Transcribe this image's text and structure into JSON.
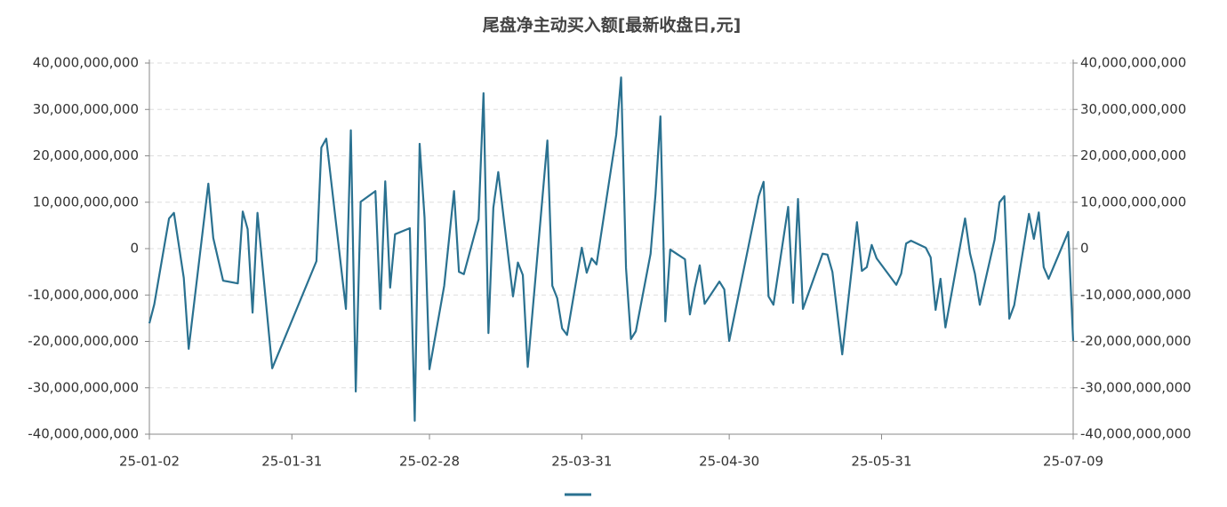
{
  "chart_data": {
    "type": "line",
    "title": "尾盘净主动买入额[最新收盘日,元]",
    "x": [
      "25-01-02",
      "25-01-03",
      "25-01-06",
      "25-01-07",
      "25-01-09",
      "25-01-10",
      "25-01-14",
      "25-01-15",
      "25-01-17",
      "25-01-20",
      "25-01-21",
      "25-01-22",
      "25-01-23",
      "25-01-24",
      "25-01-27",
      "25-02-05",
      "25-02-06",
      "25-02-07",
      "25-02-11",
      "25-02-12",
      "25-02-13",
      "25-02-14",
      "25-02-17",
      "25-02-18",
      "25-02-19",
      "25-02-20",
      "25-02-21",
      "25-02-24",
      "25-02-25",
      "25-02-26",
      "25-02-27",
      "25-02-28",
      "25-03-03",
      "25-03-05",
      "25-03-06",
      "25-03-07",
      "25-03-10",
      "25-03-11",
      "25-03-12",
      "25-03-13",
      "25-03-14",
      "25-03-17",
      "25-03-18",
      "25-03-19",
      "25-03-20",
      "25-03-24",
      "25-03-25",
      "25-03-26",
      "25-03-27",
      "25-03-28",
      "25-03-31",
      "25-04-01",
      "25-04-02",
      "25-04-03",
      "25-04-07",
      "25-04-08",
      "25-04-09",
      "25-04-10",
      "25-04-11",
      "25-04-14",
      "25-04-15",
      "25-04-16",
      "25-04-17",
      "25-04-18",
      "25-04-21",
      "25-04-22",
      "25-04-23",
      "25-04-24",
      "25-04-25",
      "25-04-28",
      "25-04-29",
      "25-04-30",
      "25-05-06",
      "25-05-07",
      "25-05-08",
      "25-05-09",
      "25-05-12",
      "25-05-13",
      "25-05-14",
      "25-05-15",
      "25-05-19",
      "25-05-20",
      "25-05-21",
      "25-05-23",
      "25-05-26",
      "25-05-27",
      "25-05-28",
      "25-05-29",
      "25-05-30",
      "25-06-03",
      "25-06-04",
      "25-06-05",
      "25-06-06",
      "25-06-09",
      "25-06-10",
      "25-06-11",
      "25-06-12",
      "25-06-13",
      "25-06-17",
      "25-06-18",
      "25-06-19",
      "25-06-20",
      "25-06-23",
      "25-06-24",
      "25-06-25",
      "25-06-26",
      "25-06-27",
      "25-06-30",
      "25-07-01",
      "25-07-02",
      "25-07-03",
      "25-07-04",
      "25-07-08",
      "25-07-09"
    ],
    "series": [
      {
        "color": "#2a7190",
        "values": [
          -16100000000,
          -12000000000,
          6500000000,
          7700000000,
          -6300000000,
          -21600000000,
          14000000000,
          2300000000,
          -6900000000,
          -7500000000,
          8000000000,
          4200000000,
          -13800000000,
          7700000000,
          -25800000000,
          -2700000000,
          21800000000,
          23700000000,
          -13000000000,
          25500000000,
          -30800000000,
          10100000000,
          12400000000,
          -13000000000,
          14500000000,
          -8400000000,
          3100000000,
          4400000000,
          -37100000000,
          22600000000,
          6700000000,
          -26000000000,
          -8000000000,
          12400000000,
          -5000000000,
          -5500000000,
          6300000000,
          33500000000,
          -18200000000,
          8800000000,
          16500000000,
          -10300000000,
          -3000000000,
          -5700000000,
          -25500000000,
          23300000000,
          -8000000000,
          -10700000000,
          -17200000000,
          -18600000000,
          200000000,
          -5200000000,
          -2100000000,
          -3400000000,
          24500000000,
          36900000000,
          -4200000000,
          -19500000000,
          -17800000000,
          -1100000000,
          11700000000,
          28500000000,
          -15700000000,
          -200000000,
          -2300000000,
          -14200000000,
          -8400000000,
          -3600000000,
          -11900000000,
          -7100000000,
          -8800000000,
          -19900000000,
          11300000000,
          14400000000,
          -10300000000,
          -12100000000,
          9000000000,
          -11700000000,
          10700000000,
          -13000000000,
          -1100000000,
          -1300000000,
          -5000000000,
          -22800000000,
          5700000000,
          -4800000000,
          -4000000000,
          800000000,
          -2100000000,
          -7800000000,
          -5400000000,
          1100000000,
          1700000000,
          200000000,
          -1900000000,
          -13200000000,
          -6500000000,
          -17000000000,
          6500000000,
          -1000000000,
          -5400000000,
          -12100000000,
          1900000000,
          10000000000,
          11300000000,
          -15100000000,
          -12200000000,
          7500000000,
          2100000000,
          7800000000,
          -4000000000,
          -6500000000,
          3600000000,
          -19900000000
        ]
      }
    ],
    "xlim": [
      "25-01-02",
      "25-07-09"
    ],
    "xticks": [
      "25-01-02",
      "25-01-31",
      "25-02-28",
      "25-03-31",
      "25-04-30",
      "25-05-31",
      "25-07-09"
    ],
    "ylim": [
      -40000000000,
      40000000000
    ],
    "yticks": [
      {
        "value": -40000000000,
        "label": "-40,000,000,000"
      },
      {
        "value": -30000000000,
        "label": "-30,000,000,000"
      },
      {
        "value": -20000000000,
        "label": "-20,000,000,000"
      },
      {
        "value": -10000000000,
        "label": "-10,000,000,000"
      },
      0,
      {
        "value": 10000000000,
        "label": "10,000,000,000"
      },
      {
        "value": 20000000000,
        "label": "20,000,000,000"
      },
      {
        "value": 30000000000,
        "label": "30,000,000,000"
      },
      {
        "value": 40000000000,
        "label": "40,000,000,000"
      }
    ],
    "y2lim": [
      -40000000000,
      40000000000
    ],
    "y2ticks": [
      {
        "value": -40000000000,
        "label": "-40,000,000,000"
      },
      {
        "value": -30000000000,
        "label": "-30,000,000,000"
      },
      {
        "value": -20000000000,
        "label": "-20,000,000,000"
      },
      {
        "value": -10000000000,
        "label": "-10,000,000,000"
      },
      0,
      {
        "value": 10000000000,
        "label": "10,000,000,000"
      },
      {
        "value": 20000000000,
        "label": "20,000,000,000"
      },
      {
        "value": 30000000000,
        "label": "30,000,000,000"
      },
      {
        "value": 40000000000,
        "label": "40,000,000,000"
      }
    ],
    "grid": true
  }
}
